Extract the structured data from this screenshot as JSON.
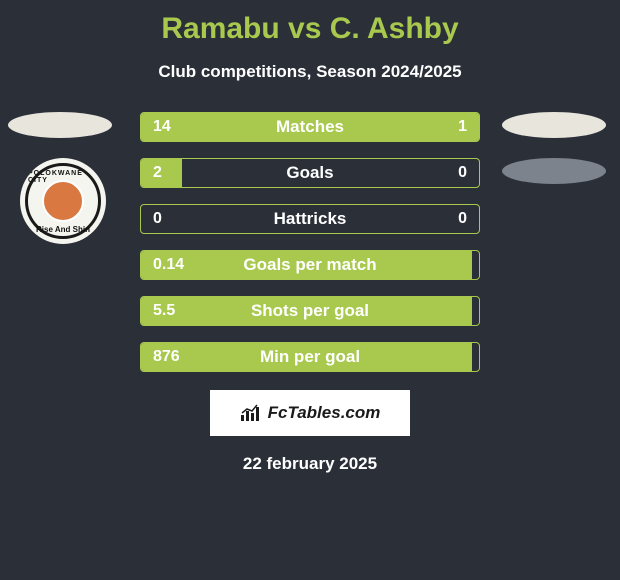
{
  "title": "Ramabu vs C. Ashby",
  "subtitle": "Club competitions, Season 2024/2025",
  "colors": {
    "background": "#2a2f38",
    "accent": "#a8c94d",
    "text": "#ffffff",
    "footer_bg": "#ffffff",
    "footer_text": "#1a1a1a",
    "ellipse_light": "#e8e5dc",
    "ellipse_gray": "#7d838c",
    "badge_center": "#d97840"
  },
  "club_badge": {
    "top_text": "POLOKWANE CITY",
    "bottom_text": "Rise And Shin"
  },
  "stats": [
    {
      "label": "Matches",
      "left_value": "14",
      "right_value": "1",
      "left_fill_pct": 78,
      "right_fill_pct": 22
    },
    {
      "label": "Goals",
      "left_value": "2",
      "right_value": "0",
      "left_fill_pct": 12,
      "right_fill_pct": 0
    },
    {
      "label": "Hattricks",
      "left_value": "0",
      "right_value": "0",
      "left_fill_pct": 0,
      "right_fill_pct": 0
    },
    {
      "label": "Goals per match",
      "left_value": "0.14",
      "right_value": "",
      "left_fill_pct": 98,
      "right_fill_pct": 0
    },
    {
      "label": "Shots per goal",
      "left_value": "5.5",
      "right_value": "",
      "left_fill_pct": 98,
      "right_fill_pct": 0
    },
    {
      "label": "Min per goal",
      "left_value": "876",
      "right_value": "",
      "left_fill_pct": 98,
      "right_fill_pct": 0
    }
  ],
  "footer": {
    "site": "FcTables.com",
    "date": "22 february 2025"
  }
}
